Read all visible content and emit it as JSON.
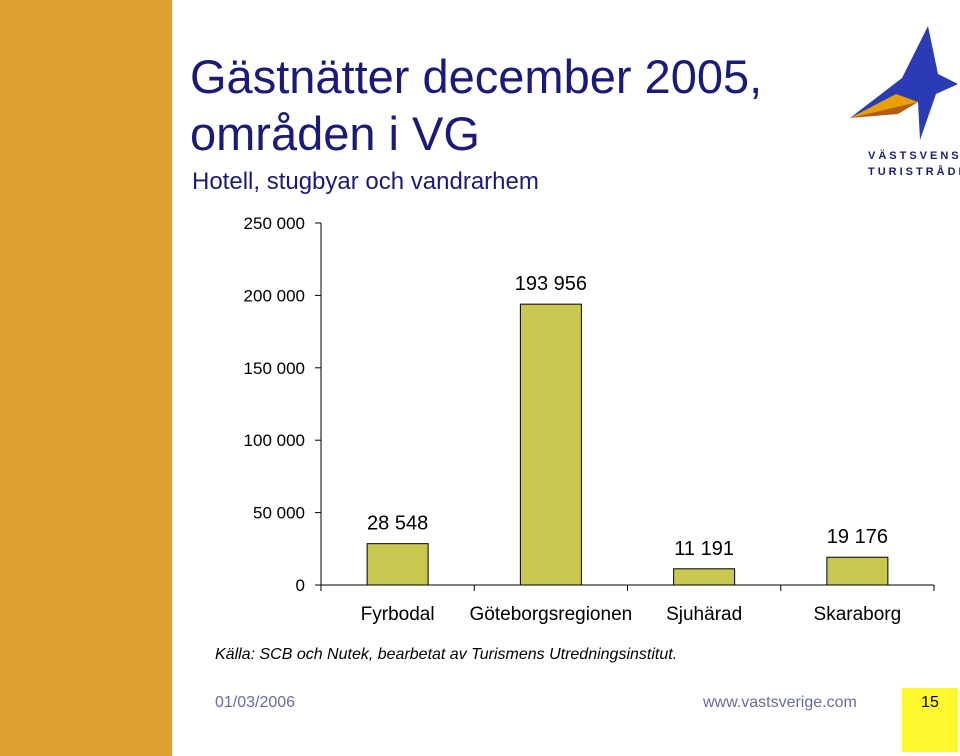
{
  "title_line1": "Gästnätter december 2005,",
  "title_line2": "områden i VG",
  "subtitle": "Hotell, stugbyar och vandrarhem",
  "logo": {
    "line1": "VÄSTSVENSKA",
    "line2": "TURISTRÅDET"
  },
  "source": "Källa: SCB och Nutek, bearbetat av Turismens Utredningsinstitut.",
  "footer": {
    "date": "01/03/2006",
    "url": "www.vastsverige.com",
    "page": "15"
  },
  "colors": {
    "sidebar": "#e0a032",
    "bar": "#c8c850",
    "title": "#1a1a7a",
    "page_box": "#fff82c"
  },
  "chart_data": {
    "type": "bar",
    "categories": [
      "Fyrbodal",
      "Göteborgsregionen",
      "Sjuhärad",
      "Skaraborg"
    ],
    "values": [
      28548,
      193956,
      11191,
      19176
    ],
    "value_labels": [
      "28 548",
      "193 956",
      "11 191",
      "19 176"
    ],
    "ylim": [
      0,
      250000
    ],
    "y_ticks": [
      0,
      50000,
      100000,
      150000,
      200000,
      250000
    ],
    "y_tick_labels": [
      "0",
      "50 000",
      "100 000",
      "150 000",
      "200 000",
      "250 000"
    ],
    "grid": false,
    "legend": "none"
  }
}
